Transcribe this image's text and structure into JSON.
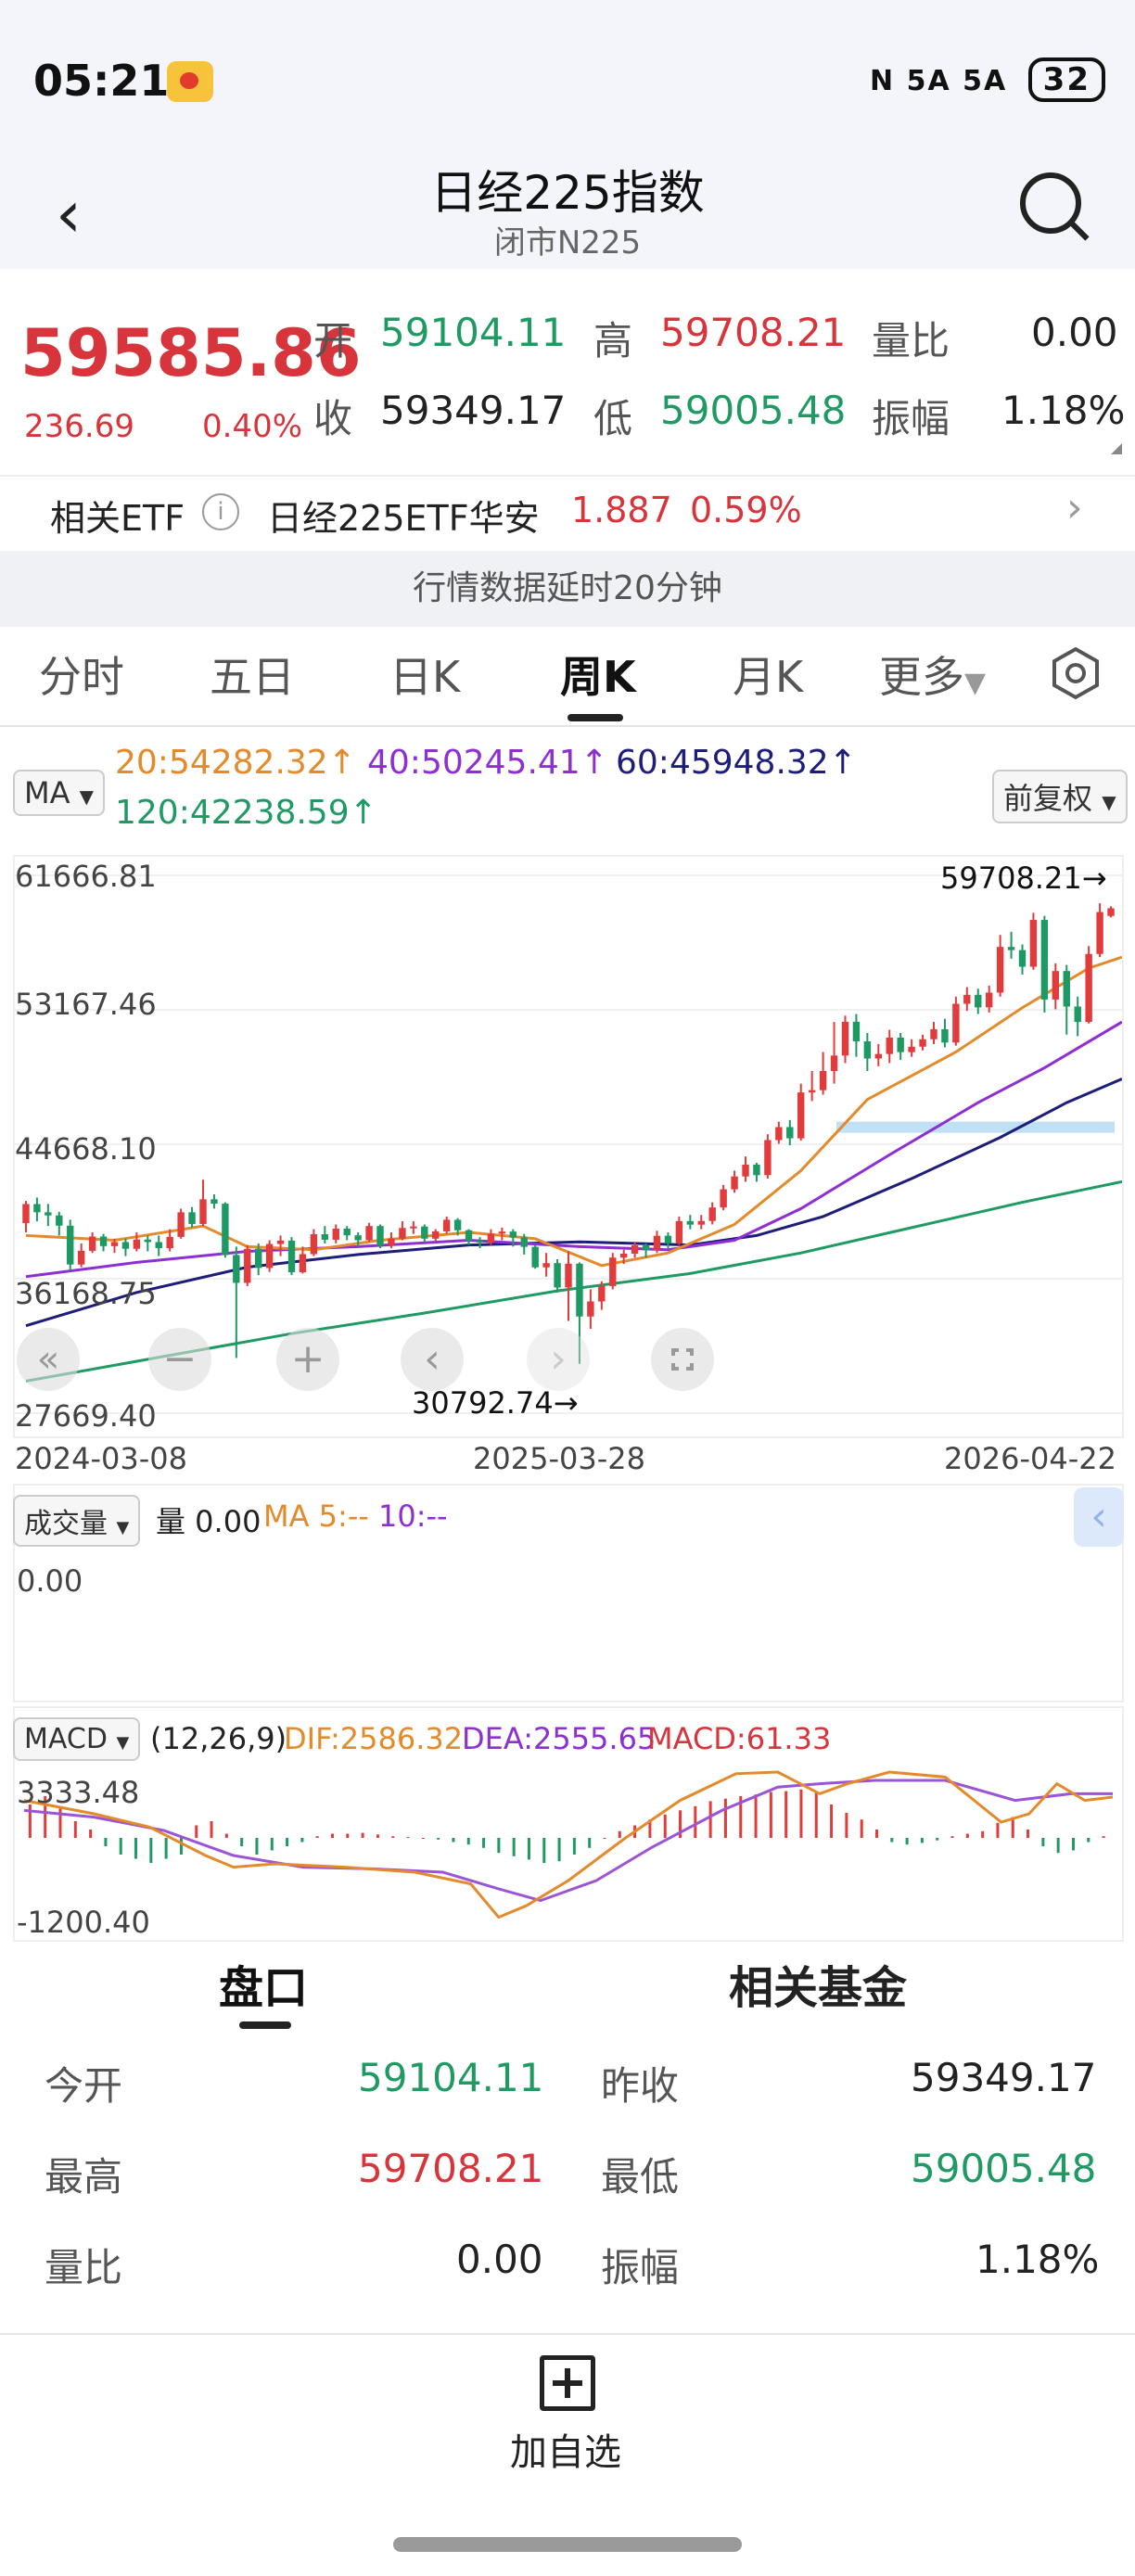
{
  "status_bar": {
    "time": "05:21",
    "signal_text": "N  5A  5A",
    "battery": "32"
  },
  "header": {
    "title": "日经225指数",
    "subtitle": "闭市N225"
  },
  "quote": {
    "price": "59585.86",
    "change": "236.69",
    "change_pct": "0.40%",
    "open_label": "开",
    "open": "59104.11",
    "high_label": "高",
    "high": "59708.21",
    "ratio_label": "量比",
    "ratio": "0.00",
    "close_label": "收",
    "close": "59349.17",
    "low_label": "低",
    "low": "59005.48",
    "amp_label": "振幅",
    "amp": "1.18%"
  },
  "etf": {
    "label": "相关ETF",
    "name": "日经225ETF华安",
    "price": "1.887",
    "pct": "0.59%"
  },
  "delay_notice": "行情数据延时20分钟",
  "tabs": [
    "分时",
    "五日",
    "日K",
    "周K",
    "月K",
    "更多"
  ],
  "ma_panel": {
    "chip": "MA",
    "ma20": "20:54282.32↑",
    "ma40": "40:50245.41↑",
    "ma60": "60:45948.32↑",
    "ma120": "120:42238.59↑",
    "adjust": "前复权"
  },
  "chart_data": {
    "type": "candlestick",
    "y_ticks": [
      "61666.81",
      "53167.46",
      "44668.10",
      "36168.75",
      "27669.40"
    ],
    "x_ticks": [
      "2024-03-08",
      "2025-03-28",
      "2026-04-22"
    ],
    "max_label": "59708.21→",
    "min_label": "30792.74→",
    "ylim": [
      27669.4,
      61666.81
    ],
    "colors": {
      "up": "#e23b3b",
      "down": "#1d9a63",
      "ma20": "#e48a2b",
      "ma40": "#8e2fd3",
      "ma60": "#1d1d7a",
      "ma120": "#1f9a63"
    },
    "candles": [
      [
        39688,
        40888,
        39100,
        41088
      ],
      [
        40888,
        40369,
        39800,
        41300
      ],
      [
        40369,
        40168,
        39500,
        40900
      ],
      [
        40168,
        39523,
        38900,
        40400
      ],
      [
        39523,
        37068,
        36700,
        39900
      ],
      [
        37068,
        37934,
        36900,
        38400
      ],
      [
        37934,
        38835,
        37800,
        39100
      ],
      [
        38835,
        38229,
        37900,
        39000
      ],
      [
        38229,
        38487,
        37800,
        38700
      ],
      [
        38487,
        38062,
        37600,
        38700
      ],
      [
        38062,
        38646,
        37900,
        39100
      ],
      [
        38646,
        38487,
        37900,
        38900
      ],
      [
        38487,
        38102,
        37600,
        38900
      ],
      [
        38102,
        38814,
        37900,
        39300
      ],
      [
        38814,
        40369,
        38700,
        40600
      ],
      [
        40369,
        39631,
        39400,
        40700
      ],
      [
        39631,
        41190,
        39500,
        42426
      ],
      [
        41190,
        40912,
        40600,
        41500
      ],
      [
        40912,
        37667,
        37500,
        41000
      ],
      [
        37667,
        35909,
        31156,
        38200
      ],
      [
        35909,
        38062,
        35700,
        38300
      ],
      [
        38062,
        36850,
        36400,
        38400
      ],
      [
        36850,
        38364,
        36600,
        38600
      ],
      [
        38364,
        38580,
        37600,
        38900
      ],
      [
        38580,
        36581,
        36400,
        38800
      ],
      [
        36581,
        37723,
        36500,
        38200
      ],
      [
        37723,
        38982,
        37600,
        39300
      ],
      [
        38982,
        38635,
        38400,
        39500
      ],
      [
        38635,
        39333,
        38400,
        39600
      ],
      [
        39333,
        38913,
        38600,
        39500
      ],
      [
        38913,
        38605,
        38200,
        39100
      ],
      [
        38605,
        39500,
        38500,
        39700
      ],
      [
        39500,
        38283,
        38100,
        39600
      ],
      [
        38283,
        38703,
        38100,
        39100
      ],
      [
        38703,
        39377,
        38600,
        39800
      ],
      [
        39377,
        39470,
        39000,
        39800
      ],
      [
        39470,
        38701,
        38500,
        39600
      ],
      [
        38701,
        39161,
        38500,
        39300
      ],
      [
        39161,
        39895,
        39000,
        40100
      ],
      [
        39895,
        39233,
        38900,
        40000
      ],
      [
        39233,
        38572,
        38300,
        39300
      ],
      [
        38572,
        38451,
        38100,
        38800
      ],
      [
        38451,
        39019,
        38300,
        39300
      ],
      [
        39019,
        39149,
        38600,
        39400
      ],
      [
        39149,
        38776,
        38200,
        39300
      ],
      [
        38776,
        38183,
        37700,
        39000
      ],
      [
        38183,
        36887,
        36800,
        38300
      ],
      [
        36887,
        37155,
        36300,
        37800
      ],
      [
        37155,
        35617,
        35300,
        37400
      ],
      [
        35617,
        37120,
        33500,
        37900
      ],
      [
        37120,
        33780,
        30792,
        37200
      ],
      [
        33780,
        34730,
        33000,
        35500
      ],
      [
        34730,
        35705,
        34200,
        36000
      ],
      [
        35705,
        37503,
        35500,
        37800
      ],
      [
        37503,
        37753,
        37100,
        38000
      ],
      [
        37753,
        38277,
        37500,
        38500
      ],
      [
        38277,
        37965,
        37500,
        38400
      ],
      [
        37965,
        38884,
        37800,
        39200
      ],
      [
        38884,
        38403,
        38100,
        39100
      ],
      [
        38403,
        39810,
        38300,
        40100
      ],
      [
        39810,
        39587,
        39300,
        40200
      ],
      [
        39587,
        39819,
        39300,
        40200
      ],
      [
        39819,
        40674,
        39600,
        41000
      ],
      [
        40674,
        41820,
        40500,
        42100
      ],
      [
        41820,
        42633,
        41600,
        43000
      ],
      [
        42633,
        43378,
        42300,
        43900
      ],
      [
        43378,
        42718,
        42300,
        43500
      ],
      [
        42718,
        44932,
        42500,
        45300
      ],
      [
        44932,
        45754,
        44700,
        46100
      ],
      [
        45754,
        45045,
        44600,
        46200
      ],
      [
        45045,
        47944,
        44900,
        48500
      ],
      [
        47944,
        48089,
        47400,
        49300
      ],
      [
        48089,
        49299,
        47800,
        50500
      ],
      [
        49299,
        50276,
        48500,
        52400
      ],
      [
        50276,
        52411,
        49800,
        52800
      ],
      [
        52411,
        51176,
        50200,
        52900
      ],
      [
        51176,
        50087,
        49300,
        51700
      ],
      [
        50087,
        50375,
        49600,
        51000
      ],
      [
        50375,
        51411,
        49800,
        51900
      ],
      [
        51411,
        50492,
        50000,
        51700
      ],
      [
        50492,
        50836,
        50200,
        51300
      ],
      [
        50836,
        51307,
        50600,
        51600
      ],
      [
        51307,
        51940,
        51000,
        52400
      ],
      [
        51940,
        51099,
        50800,
        52600
      ],
      [
        51099,
        53549,
        50900,
        54000
      ],
      [
        53549,
        54110,
        53100,
        54600
      ],
      [
        54110,
        53322,
        52900,
        54500
      ],
      [
        53322,
        54253,
        53000,
        54700
      ],
      [
        54253,
        57143,
        54000,
        57900
      ],
      [
        57143,
        56941,
        56400,
        58100
      ],
      [
        56941,
        55890,
        55400,
        57300
      ],
      [
        55890,
        58850,
        55700,
        59300
      ],
      [
        58850,
        53819,
        53000,
        59100
      ],
      [
        53819,
        55620,
        53200,
        56100
      ],
      [
        55620,
        53373,
        51600,
        56000
      ],
      [
        53373,
        52400,
        51500,
        54000
      ],
      [
        52400,
        56700,
        52300,
        57200
      ],
      [
        56700,
        59349,
        56500,
        59900
      ],
      [
        59104,
        59585,
        59005,
        59708
      ]
    ],
    "ma20_pts": [
      [
        0,
        38900
      ],
      [
        8,
        38600
      ],
      [
        16,
        39500
      ],
      [
        20,
        38200
      ],
      [
        26,
        38000
      ],
      [
        32,
        38600
      ],
      [
        40,
        39100
      ],
      [
        46,
        38700
      ],
      [
        52,
        37000
      ],
      [
        58,
        37800
      ],
      [
        64,
        39600
      ],
      [
        70,
        43000
      ],
      [
        76,
        47500
      ],
      [
        84,
        50500
      ],
      [
        90,
        53300
      ],
      [
        96,
        55800
      ],
      [
        99,
        56500
      ]
    ],
    "ma40_pts": [
      [
        0,
        36300
      ],
      [
        10,
        37200
      ],
      [
        20,
        37900
      ],
      [
        30,
        38200
      ],
      [
        40,
        38600
      ],
      [
        50,
        38200
      ],
      [
        58,
        38000
      ],
      [
        64,
        38600
      ],
      [
        70,
        40600
      ],
      [
        78,
        44000
      ],
      [
        86,
        47300
      ],
      [
        92,
        49500
      ],
      [
        99,
        52400
      ]
    ],
    "ma60_pts": [
      [
        0,
        33200
      ],
      [
        10,
        35300
      ],
      [
        20,
        36900
      ],
      [
        30,
        37700
      ],
      [
        40,
        38300
      ],
      [
        50,
        38500
      ],
      [
        60,
        38300
      ],
      [
        66,
        38900
      ],
      [
        72,
        40100
      ],
      [
        80,
        42500
      ],
      [
        88,
        45100
      ],
      [
        94,
        47300
      ],
      [
        99,
        48800
      ]
    ],
    "ma120_pts": [
      [
        0,
        29700
      ],
      [
        12,
        31200
      ],
      [
        24,
        32700
      ],
      [
        36,
        34000
      ],
      [
        48,
        35400
      ],
      [
        60,
        36500
      ],
      [
        70,
        37800
      ],
      [
        80,
        39400
      ],
      [
        90,
        41000
      ],
      [
        99,
        42300
      ]
    ]
  },
  "volume_panel": {
    "chip": "成交量",
    "text": "量 0.00",
    "ma5": "MA 5:--",
    "ma10": "10:--",
    "value": "0.00"
  },
  "macd_panel": {
    "chip": "MACD",
    "params": "(12,26,9)",
    "dif": "DIF:2586.32",
    "dea": "DEA:2555.65",
    "macd": "MACD:61.33",
    "top_tick": "3333.48",
    "bottom_tick": "-1200.40",
    "hist": [
      0.4,
      0.5,
      0.35,
      0.2,
      0.1,
      -0.1,
      -0.2,
      -0.25,
      -0.3,
      -0.25,
      -0.2,
      0.15,
      0.2,
      0.05,
      -0.1,
      -0.2,
      -0.15,
      -0.1,
      -0.05,
      0.02,
      0.05,
      0.05,
      0.06,
      0.04,
      0.02,
      0.01,
      0.0,
      -0.02,
      -0.05,
      -0.08,
      -0.12,
      -0.18,
      -0.22,
      -0.26,
      -0.3,
      -0.28,
      -0.2,
      -0.12,
      0.0,
      0.08,
      0.15,
      0.22,
      0.28,
      0.33,
      0.38,
      0.44,
      0.47,
      0.5,
      0.52,
      0.55,
      0.56,
      0.58,
      0.55,
      0.4,
      0.3,
      0.22,
      0.1,
      -0.05,
      -0.08,
      -0.06,
      -0.03,
      0.02,
      0.05,
      0.08,
      0.18,
      0.25,
      0.1,
      -0.1,
      -0.18,
      -0.15,
      -0.05,
      0.02
    ],
    "dif_pts": [
      [
        0,
        0.22
      ],
      [
        10,
        0.3
      ],
      [
        18,
        0.38
      ],
      [
        26,
        0.55
      ],
      [
        30,
        0.62
      ],
      [
        36,
        0.6
      ],
      [
        46,
        0.62
      ],
      [
        56,
        0.65
      ],
      [
        64,
        0.72
      ],
      [
        68,
        0.92
      ],
      [
        72,
        0.85
      ],
      [
        78,
        0.7
      ],
      [
        86,
        0.45
      ],
      [
        94,
        0.22
      ],
      [
        102,
        0.06
      ],
      [
        108,
        0.05
      ],
      [
        114,
        0.18
      ],
      [
        118,
        0.12
      ],
      [
        124,
        0.05
      ],
      [
        132,
        0.08
      ],
      [
        140,
        0.35
      ],
      [
        144,
        0.3
      ],
      [
        148,
        0.12
      ],
      [
        152,
        0.22
      ],
      [
        156,
        0.2
      ]
    ],
    "dea_pts": [
      [
        0,
        0.28
      ],
      [
        10,
        0.32
      ],
      [
        20,
        0.4
      ],
      [
        30,
        0.55
      ],
      [
        40,
        0.62
      ],
      [
        50,
        0.63
      ],
      [
        60,
        0.65
      ],
      [
        68,
        0.75
      ],
      [
        74,
        0.82
      ],
      [
        82,
        0.7
      ],
      [
        90,
        0.5
      ],
      [
        100,
        0.28
      ],
      [
        108,
        0.14
      ],
      [
        114,
        0.12
      ],
      [
        122,
        0.1
      ],
      [
        132,
        0.1
      ],
      [
        142,
        0.22
      ],
      [
        150,
        0.18
      ],
      [
        156,
        0.18
      ]
    ]
  },
  "bottom_tabs": [
    "盘口",
    "相关基金"
  ],
  "panel": {
    "today_open_label": "今开",
    "today_open": "59104.11",
    "prev_close_label": "昨收",
    "prev_close": "59349.17",
    "high_label": "最高",
    "high": "59708.21",
    "low_label": "最低",
    "low": "59005.48",
    "ratio_label": "量比",
    "ratio": "0.00",
    "amp_label": "振幅",
    "amp": "1.18%"
  },
  "footer": {
    "add_label": "加自选"
  }
}
